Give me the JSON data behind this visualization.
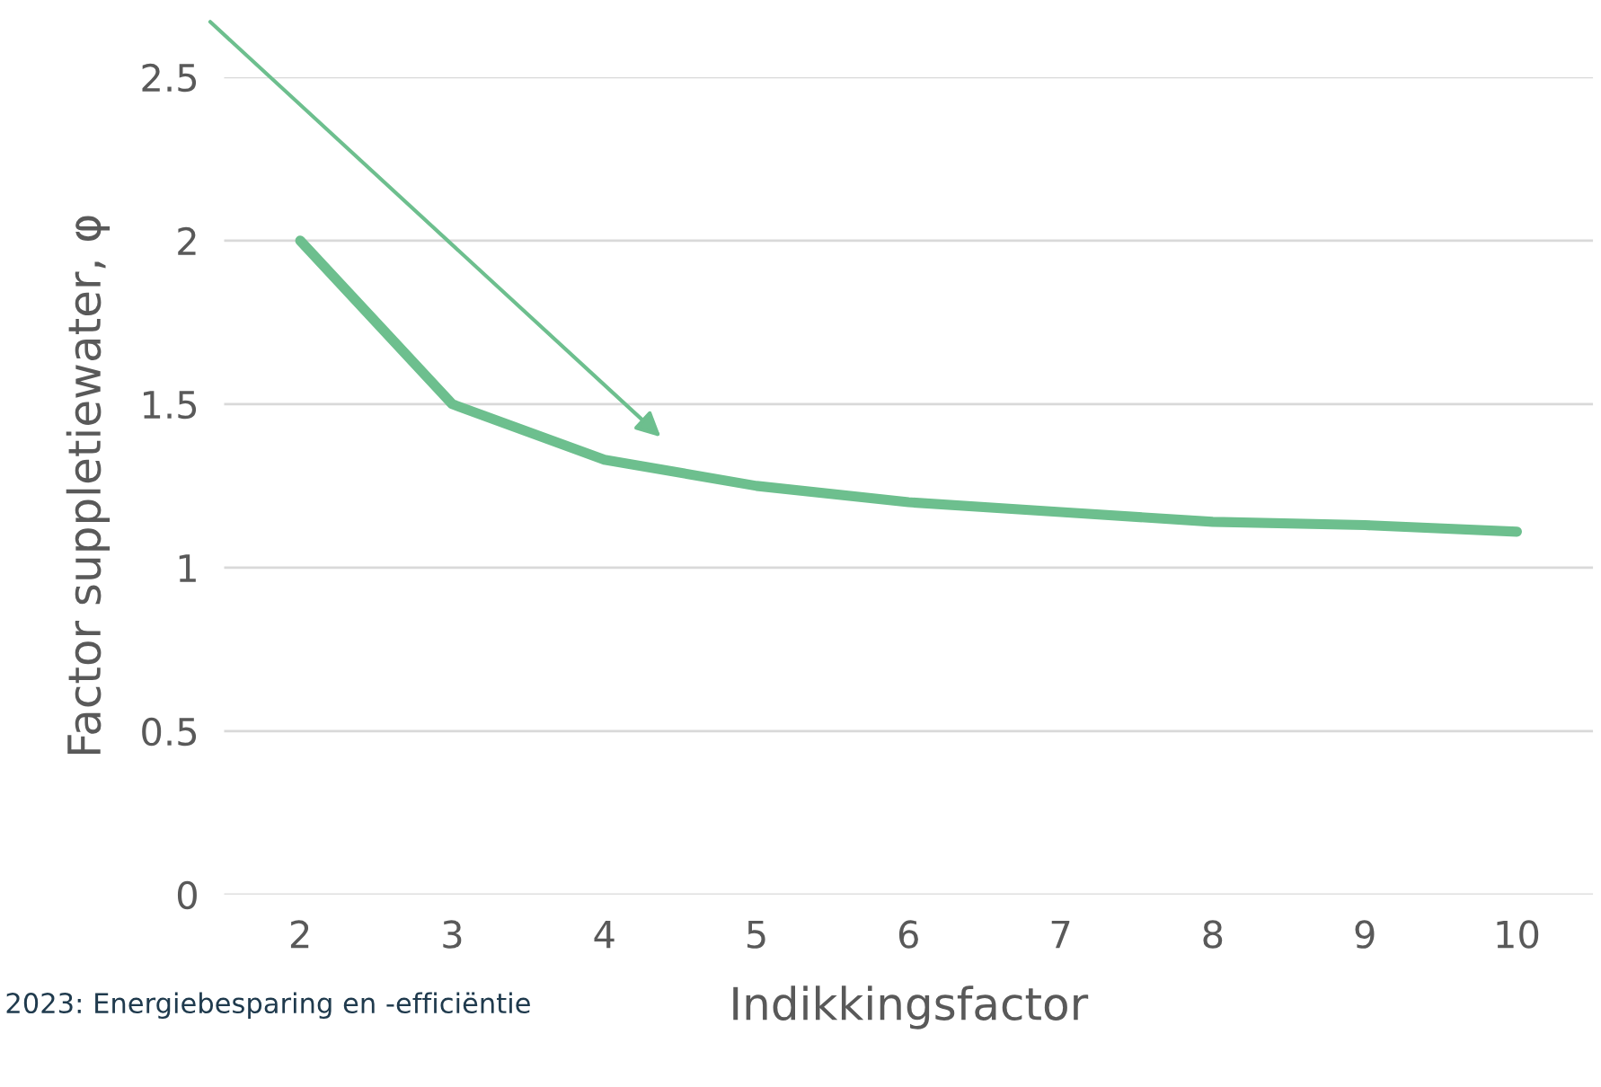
{
  "chart_data": {
    "type": "line",
    "xlabel": "Indikkingsfactor",
    "ylabel": "Factor suppletiewater, φ",
    "categories": [
      "2",
      "3",
      "4",
      "5",
      "6",
      "7",
      "8",
      "9",
      "10"
    ],
    "series": [
      {
        "color": "#6dbf8e",
        "values": [
          2.0,
          1.5,
          1.33,
          1.25,
          1.2,
          1.17,
          1.14,
          1.13,
          1.11
        ]
      }
    ],
    "ylim": [
      0,
      2.5
    ],
    "yticks": [
      0,
      0.5,
      1,
      1.5,
      2,
      2.5
    ],
    "grid": "y",
    "marker": "none",
    "line_style": "solid",
    "annotations": [
      "2023: Energiebesparing en -efficiëntie"
    ]
  }
}
